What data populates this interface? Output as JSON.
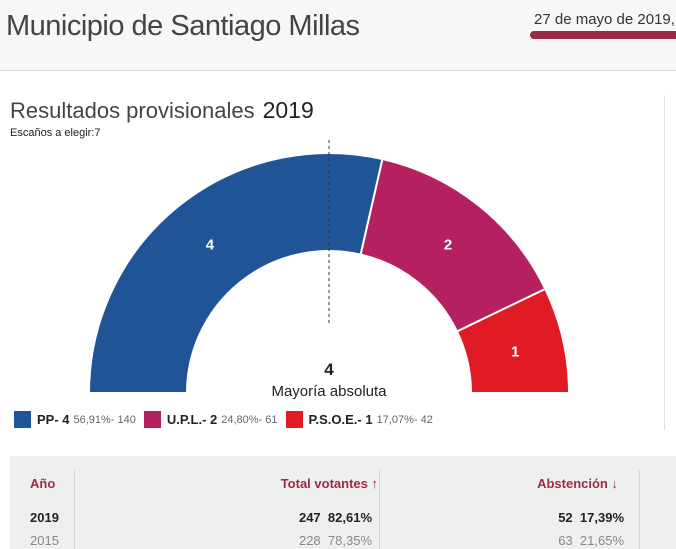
{
  "header": {
    "title": "Municipio de Santiago Millas",
    "date": "27 de mayo de 2019,"
  },
  "results": {
    "heading": "Resultados provisionales",
    "year": "2019",
    "seats_label": "Escaños a elegir:7"
  },
  "chart_data": {
    "type": "hemicycle",
    "total_seats": 7,
    "majority": {
      "value": "4",
      "label": "Mayoría absoluta"
    },
    "parties": [
      {
        "name": "PP",
        "seats": 4,
        "pct": "56,91%",
        "votes": 140,
        "color": "#1f5497",
        "legend": "PP- 4",
        "detail": "56,91%- 140"
      },
      {
        "name": "U.P.L.",
        "seats": 2,
        "pct": "24,80%",
        "votes": 61,
        "color": "#b5205f",
        "legend": "U.P.L.- 2",
        "detail": "24,80%- 61"
      },
      {
        "name": "P.S.O.E.",
        "seats": 1,
        "pct": "17,07%",
        "votes": 42,
        "color": "#e01b24",
        "legend": "P.S.O.E.- 1",
        "detail": "17,07%- 42"
      }
    ]
  },
  "table": {
    "headers": {
      "year": "Año",
      "voters": "Total votantes",
      "voters_icon": "arrow-up-icon",
      "abst": "Abstención",
      "abst_icon": "arrow-down-icon"
    },
    "rows": [
      {
        "year": "2019",
        "voters": "247",
        "voters_pct": "82,61%",
        "abst": "52",
        "abst_pct": "17,39%"
      },
      {
        "year": "2015",
        "voters": "228",
        "voters_pct": "78,35%",
        "abst": "63",
        "abst_pct": "21,65%"
      }
    ]
  }
}
